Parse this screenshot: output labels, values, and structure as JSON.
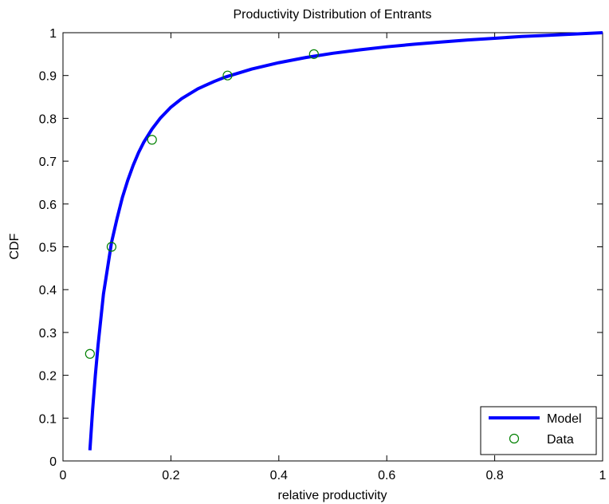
{
  "chart_data": {
    "type": "line",
    "title": "Productivity Distribution of Entrants",
    "xlabel": "relative productivity",
    "ylabel": "CDF",
    "xlim": [
      0,
      1
    ],
    "ylim": [
      0,
      1
    ],
    "xticks": [
      0,
      0.2,
      0.4,
      0.6,
      0.8,
      1
    ],
    "xtick_labels": [
      "0",
      "0.2",
      "0.4",
      "0.6",
      "0.8",
      "1"
    ],
    "yticks": [
      0,
      0.1,
      0.2,
      0.3,
      0.4,
      0.5,
      0.6,
      0.7,
      0.8,
      0.9,
      1
    ],
    "ytick_labels": [
      "0",
      "0.1",
      "0.2",
      "0.3",
      "0.4",
      "0.5",
      "0.6",
      "0.7",
      "0.8",
      "0.9",
      "1"
    ],
    "grid": false,
    "legend_position": "bottom-right",
    "series": [
      {
        "name": "Model",
        "style": "line",
        "color": "#0000ff",
        "x": [
          0.05,
          0.055,
          0.06,
          0.065,
          0.07,
          0.075,
          0.08,
          0.09,
          0.1,
          0.11,
          0.12,
          0.13,
          0.14,
          0.15,
          0.165,
          0.18,
          0.2,
          0.22,
          0.25,
          0.28,
          0.3,
          0.35,
          0.4,
          0.45,
          0.5,
          0.55,
          0.6,
          0.65,
          0.7,
          0.75,
          0.8,
          0.85,
          0.9,
          0.95,
          1.0
        ],
        "y": [
          0.025,
          0.12,
          0.2,
          0.27,
          0.33,
          0.39,
          0.43,
          0.51,
          0.565,
          0.615,
          0.655,
          0.69,
          0.72,
          0.745,
          0.775,
          0.8,
          0.826,
          0.846,
          0.869,
          0.886,
          0.896,
          0.915,
          0.93,
          0.942,
          0.952,
          0.96,
          0.967,
          0.973,
          0.978,
          0.983,
          0.987,
          0.991,
          0.994,
          0.997,
          1.0
        ]
      },
      {
        "name": "Data",
        "style": "marker",
        "color": "#008000",
        "x": [
          0.05,
          0.09,
          0.165,
          0.305,
          0.465
        ],
        "y": [
          0.25,
          0.5,
          0.75,
          0.9,
          0.95
        ]
      }
    ]
  }
}
